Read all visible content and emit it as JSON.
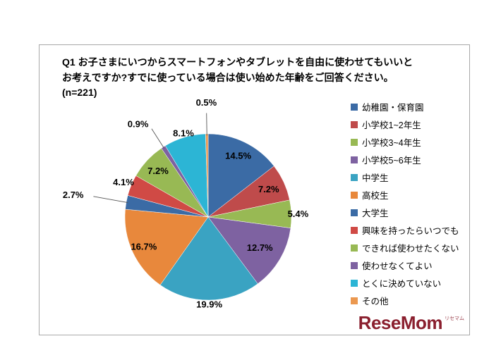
{
  "chart_data": {
    "type": "pie",
    "title": "Q1 お子さまにいつからスマートフォンやタブレットを自由に使わせてもいいとお考えですか?すでに使っている場合は使い始めた年齢をご回答ください。(n=221)",
    "categories": [
      "幼稚園・保育園",
      "小学校1~2年生",
      "小学校3~4年生",
      "小学校5~6年生",
      "中学生",
      "高校生",
      "大学生",
      "興味を持ったらいつでも",
      "できれば使わせたくない",
      "使わせなくてよい",
      "とくに決めていない",
      "その他"
    ],
    "values": [
      14.5,
      7.2,
      5.4,
      12.7,
      19.9,
      16.7,
      2.7,
      4.1,
      7.2,
      0.9,
      8.1,
      0.5
    ],
    "value_labels": [
      "14.5%",
      "7.2%",
      "5.4%",
      "12.7%",
      "19.9%",
      "16.7%",
      "2.7%",
      "4.1%",
      "7.2%",
      "0.9%",
      "8.1%",
      "0.5%"
    ],
    "colors": [
      "#3b6ba5",
      "#bf4b4b",
      "#98b954",
      "#7e62a1",
      "#3aa3c2",
      "#e8883c",
      "#3b6ba5",
      "#d04a45",
      "#98b954",
      "#7e62a1",
      "#2cb5d5",
      "#eb9850"
    ],
    "sample_size": "n=221",
    "legend_position": "right",
    "start_angle": 0,
    "direction": "clockwise",
    "unit": "%"
  },
  "branding": {
    "logo_text": "ReseMom",
    "logo_subtext": "リセマム",
    "logo_color": "#8a1f2e"
  }
}
